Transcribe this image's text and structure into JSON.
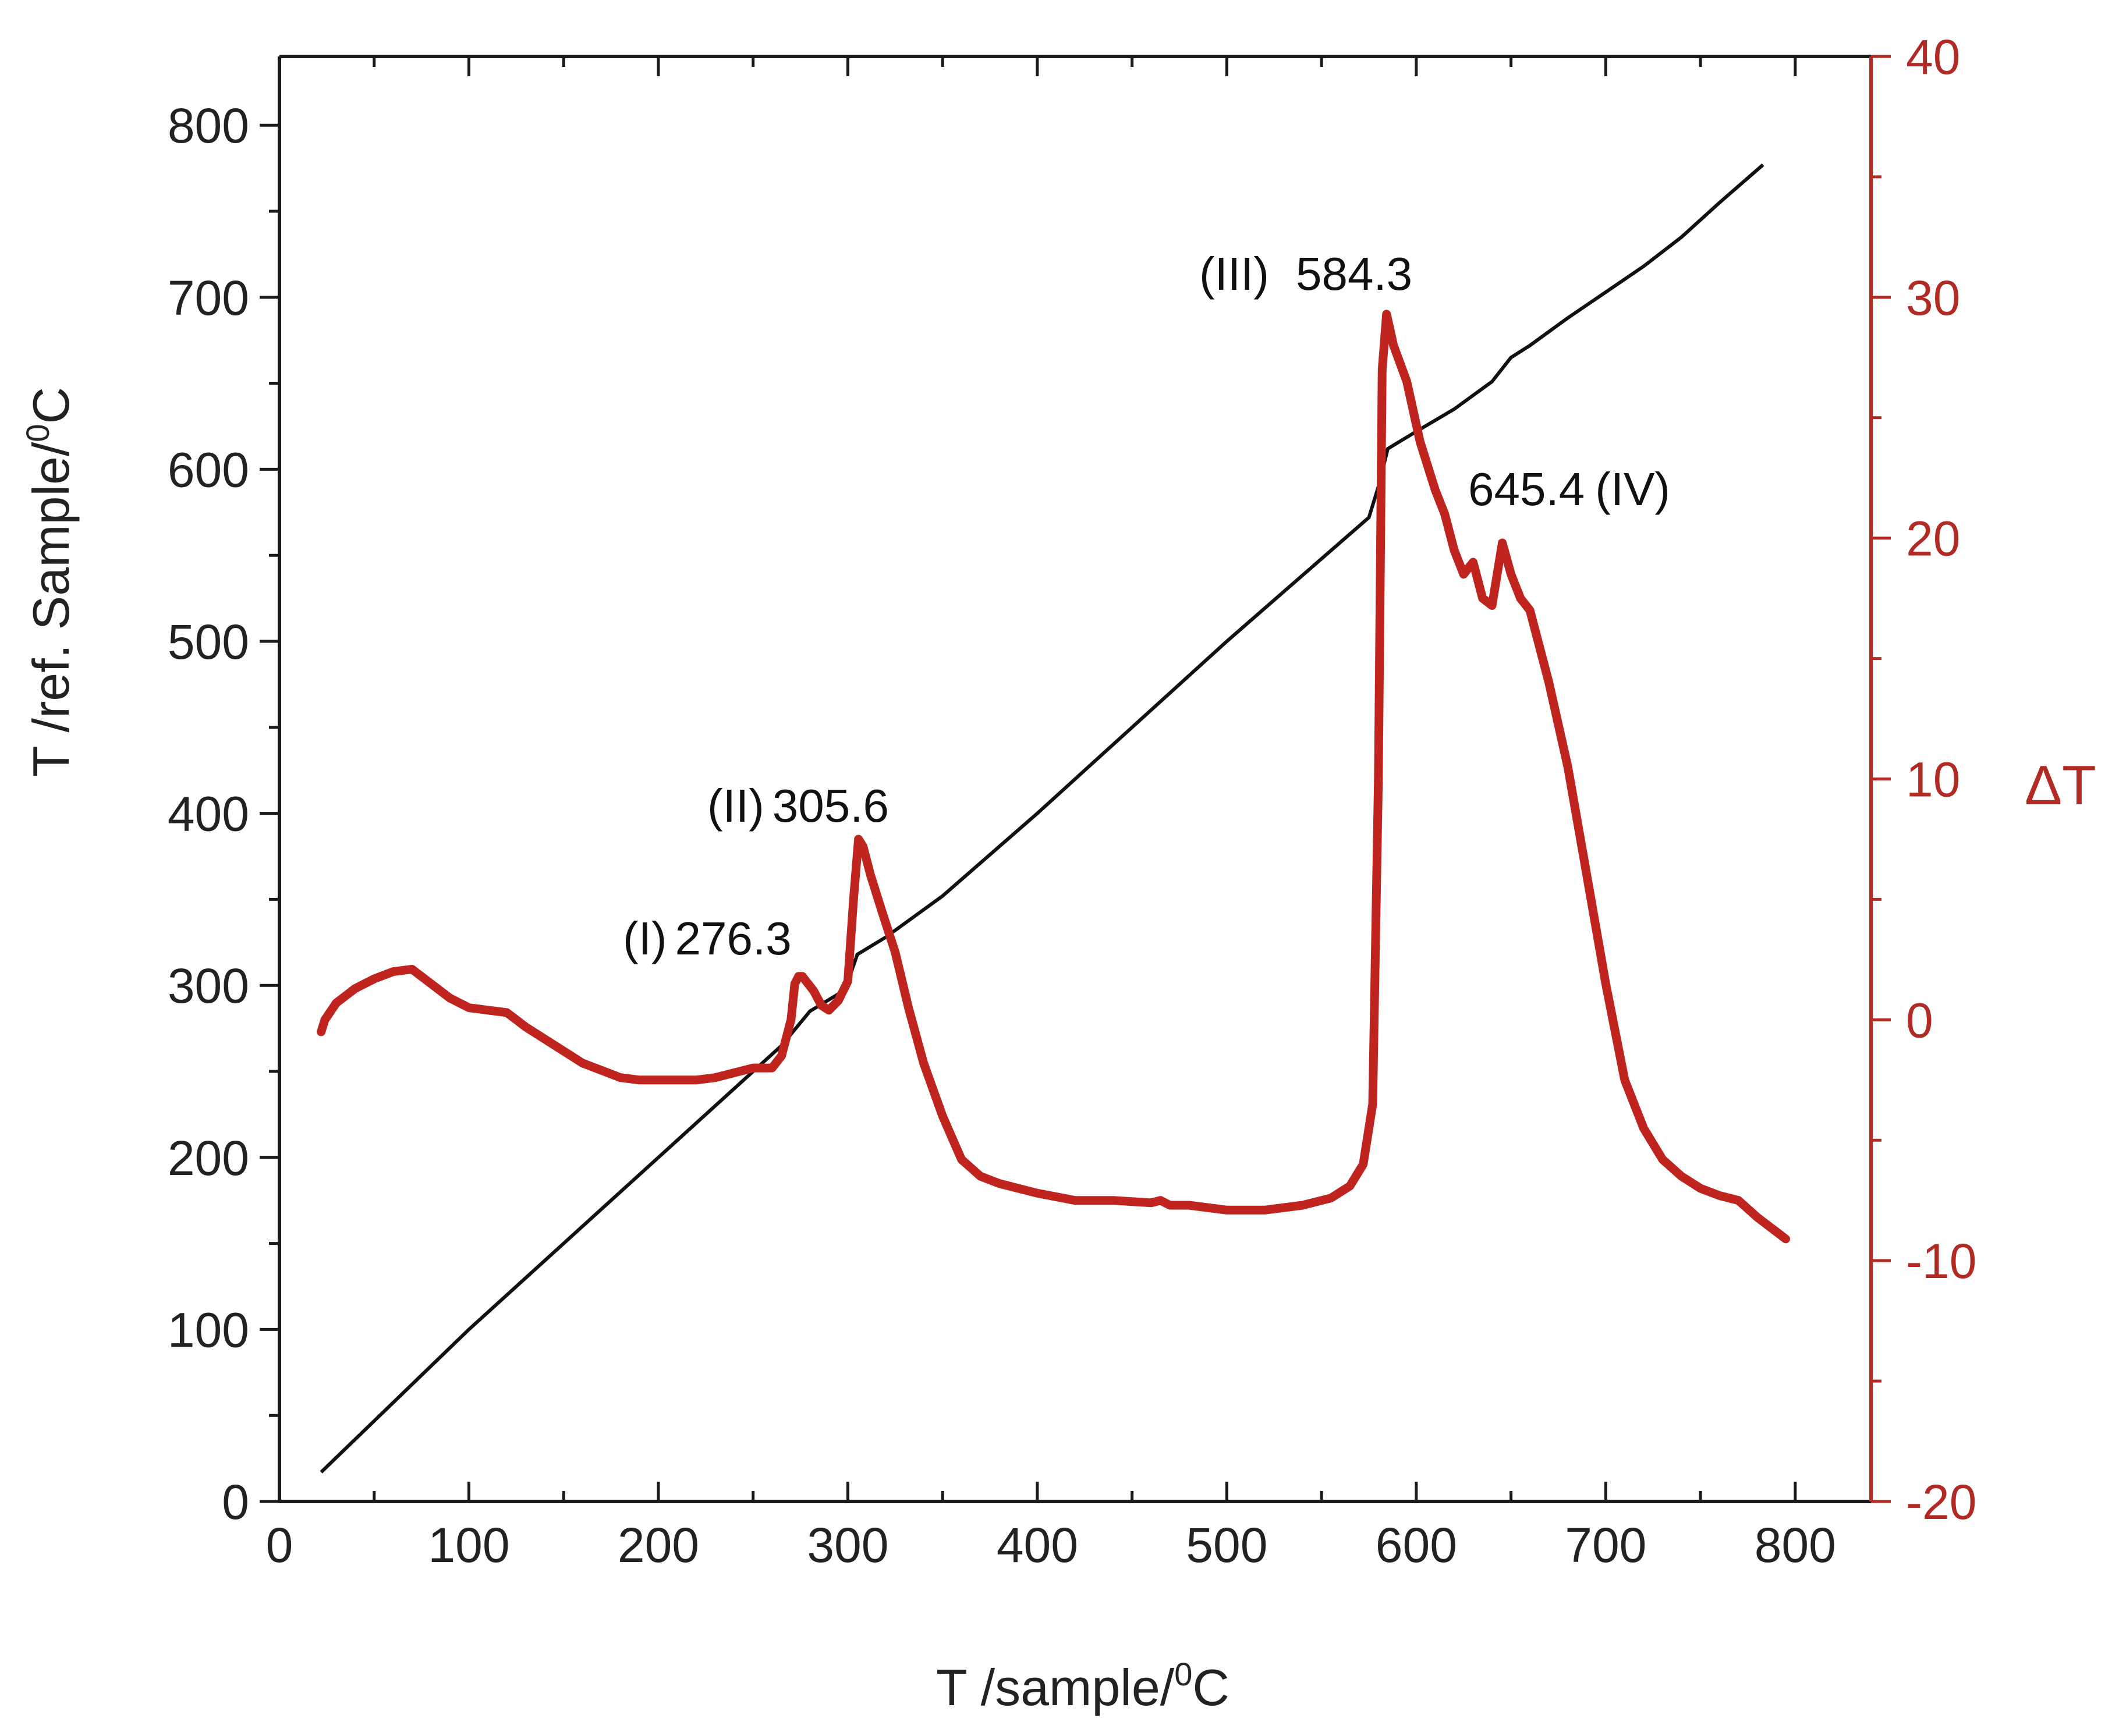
{
  "chart_data": {
    "type": "line",
    "title": "",
    "xlabel": "T /sample/",
    "xlabel_sup": "0",
    "xlabel_unit": "C",
    "ylabel": "T /ref. Sample/",
    "ylabel_sup": "0",
    "ylabel_unit": "C",
    "y2label": "ΔT",
    "xlim": [
      0,
      840
    ],
    "ylim": [
      0,
      840
    ],
    "y2lim": [
      -20,
      40
    ],
    "x_ticks": [
      0,
      100,
      200,
      300,
      400,
      500,
      600,
      700,
      800
    ],
    "y_ticks": [
      0,
      100,
      200,
      300,
      400,
      500,
      600,
      700,
      800
    ],
    "y2_ticks": [
      -20,
      -10,
      0,
      10,
      20,
      30,
      40
    ],
    "x_tick_labels": [
      "0",
      "100",
      "200",
      "300",
      "400",
      "500",
      "600",
      "700",
      "800"
    ],
    "y_tick_labels": [
      "0",
      "100",
      "200",
      "300",
      "400",
      "500",
      "600",
      "700",
      "800"
    ],
    "y2_tick_labels": [
      "-20",
      "-10",
      "0",
      "10",
      "20",
      "30",
      "40"
    ],
    "grid": false,
    "colors": {
      "reference": "#111111",
      "delta": "#c0241f",
      "right_axis": "#b22a24"
    },
    "series": [
      {
        "name": "T ref. sample",
        "axis": "left",
        "x": [
          22,
          100,
          200,
          265,
          280,
          295,
          300,
          305,
          320,
          350,
          400,
          450,
          500,
          550,
          575,
          580,
          585,
          600,
          620,
          640,
          650,
          660,
          680,
          700,
          720,
          740,
          760,
          783
        ],
        "y": [
          17,
          100,
          200,
          265,
          285,
          295,
          302,
          318,
          328,
          352,
          400,
          450,
          500,
          548,
          572,
          590,
          612,
          622,
          635,
          651,
          665,
          672,
          688,
          703,
          718,
          735,
          755,
          777
        ]
      },
      {
        "name": "ΔT",
        "axis": "right",
        "x": [
          22,
          24,
          30,
          40,
          50,
          60,
          70,
          80,
          90,
          100,
          110,
          120,
          130,
          140,
          150,
          160,
          170,
          180,
          190,
          200,
          210,
          220,
          230,
          240,
          250,
          260,
          265,
          270,
          272,
          274,
          276,
          278,
          282,
          286,
          290,
          295,
          300,
          303,
          305.6,
          308,
          312,
          318,
          325,
          332,
          340,
          350,
          360,
          370,
          380,
          400,
          420,
          440,
          460,
          465,
          470,
          480,
          500,
          520,
          540,
          555,
          565,
          572,
          577,
          580,
          582,
          584.3,
          588,
          595,
          602,
          610,
          615,
          620,
          625,
          630,
          635,
          640,
          645.4,
          650,
          655,
          660,
          670,
          680,
          690,
          700,
          710,
          720,
          730,
          740,
          750,
          760,
          770,
          780,
          790,
          795
        ],
        "y": [
          -0.5,
          0.0,
          0.7,
          1.3,
          1.7,
          2.0,
          2.1,
          1.5,
          0.9,
          0.5,
          0.4,
          0.3,
          -0.3,
          -0.8,
          -1.3,
          -1.8,
          -2.1,
          -2.4,
          -2.5,
          -2.5,
          -2.5,
          -2.5,
          -2.4,
          -2.2,
          -2.0,
          -2.0,
          -1.5,
          0.0,
          1.5,
          1.8,
          1.8,
          1.6,
          1.2,
          0.6,
          0.4,
          0.8,
          1.6,
          5.0,
          7.5,
          7.2,
          6.0,
          4.5,
          2.8,
          0.5,
          -1.8,
          -4.0,
          -5.8,
          -6.5,
          -6.8,
          -7.2,
          -7.5,
          -7.5,
          -7.6,
          -7.5,
          -7.7,
          -7.7,
          -7.9,
          -7.9,
          -7.7,
          -7.4,
          -6.9,
          -6.0,
          -3.5,
          10.0,
          27.0,
          29.3,
          28.0,
          26.5,
          24.0,
          22.0,
          21.0,
          19.5,
          18.5,
          19.0,
          17.5,
          17.2,
          19.8,
          18.5,
          17.5,
          17.0,
          14.0,
          10.5,
          6.0,
          1.5,
          -2.5,
          -4.5,
          -5.8,
          -6.5,
          -7.0,
          -7.3,
          -7.5,
          -8.2,
          -8.8,
          -9.1
        ]
      }
    ],
    "annotations": [
      {
        "id": "peak-1",
        "roman": "(I)",
        "value": "276.3"
      },
      {
        "id": "peak-2",
        "roman": "(II)",
        "value": "305.6"
      },
      {
        "id": "peak-3",
        "roman": "(III)",
        "value": "584.3"
      },
      {
        "id": "peak-4",
        "roman": "(IV)",
        "value": "645.4"
      }
    ]
  }
}
